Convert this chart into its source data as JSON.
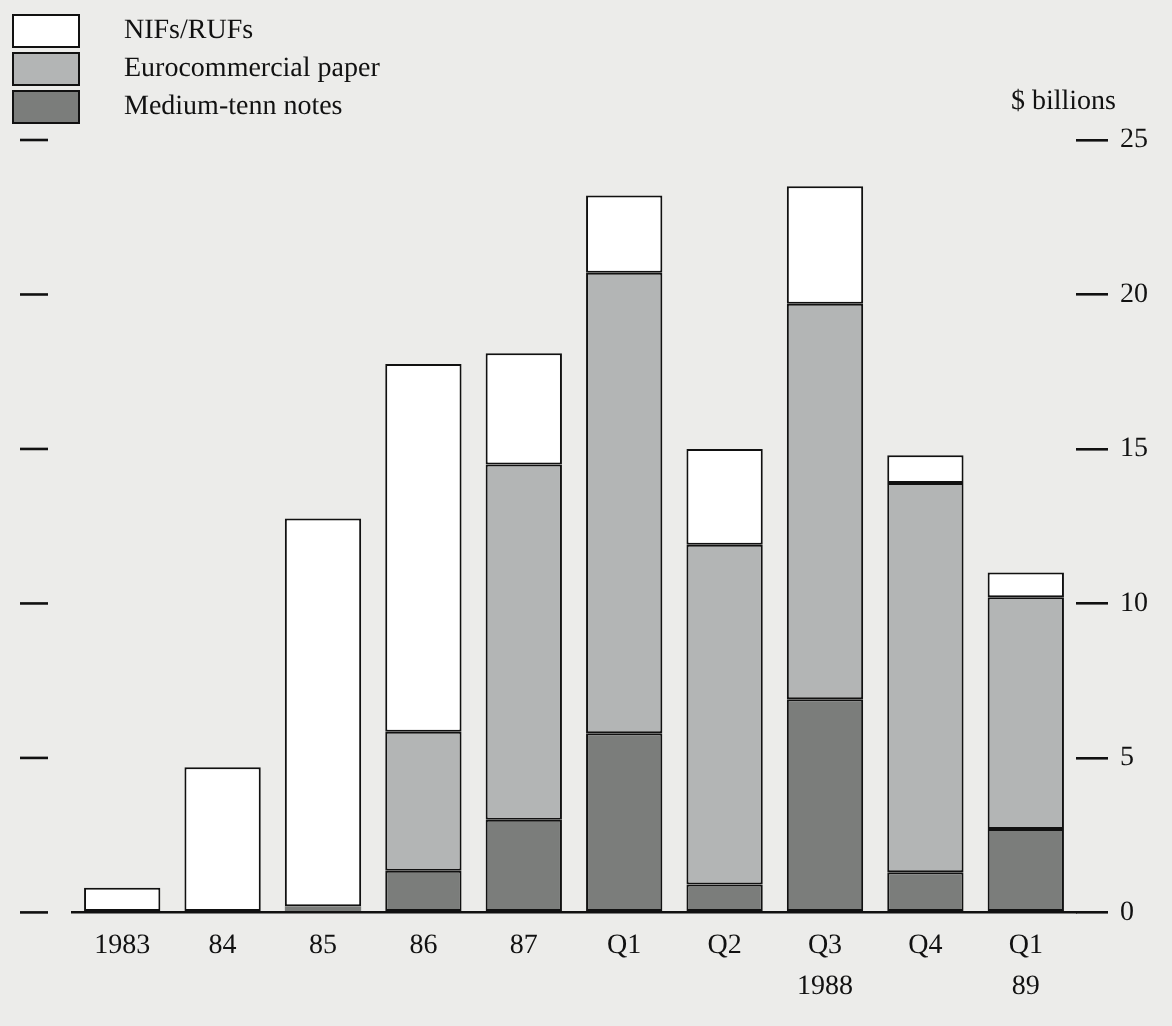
{
  "chart_data": {
    "type": "bar",
    "stacked": true,
    "ylabel": "$ billions",
    "categories": [
      "1983",
      "84",
      "85",
      "86",
      "87",
      "Q1",
      "Q2",
      "Q3",
      "Q4",
      "Q1"
    ],
    "series": [
      {
        "name": "Medium-tenn notes",
        "color": "#7b7d7b",
        "values": [
          0,
          0,
          0.2,
          1.35,
          3.0,
          5.8,
          0.9,
          6.9,
          1.3,
          2.7
        ]
      },
      {
        "name": "Eurocommercial paper",
        "color": "#b3b5b5",
        "values": [
          0,
          0,
          0,
          4.5,
          11.5,
          14.9,
          11.0,
          12.8,
          12.6,
          7.5
        ]
      },
      {
        "name": "NIFs/RUFs",
        "color": "#ffffff",
        "values": [
          0.8,
          4.7,
          12.55,
          11.9,
          3.6,
          2.5,
          3.1,
          3.8,
          0.9,
          0.8
        ]
      }
    ],
    "ylim": [
      0,
      25
    ],
    "yticks": [
      0,
      5,
      10,
      15,
      20,
      25
    ],
    "grid": false,
    "legend": "top left",
    "annotations": [
      "1988",
      "89"
    ]
  }
}
